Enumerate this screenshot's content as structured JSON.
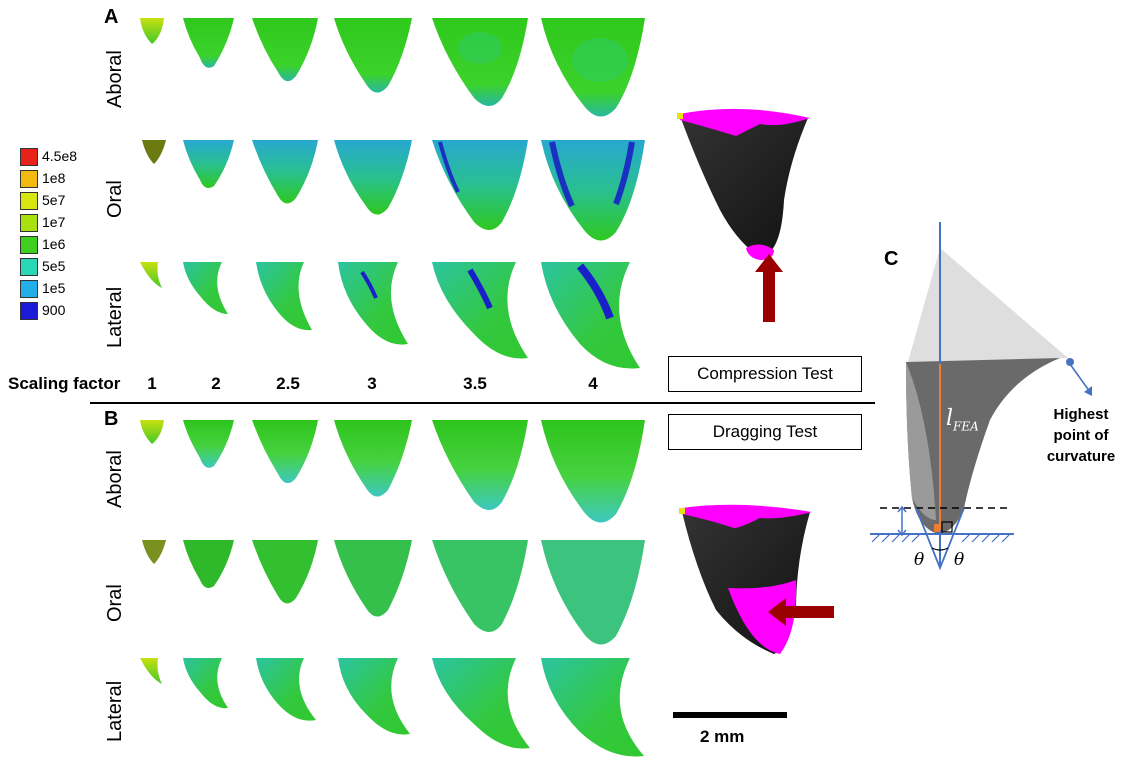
{
  "panels": {
    "a": "A",
    "b": "B",
    "c": "C"
  },
  "row_labels": {
    "aboral": "Aboral",
    "oral": "Oral",
    "lateral": "Lateral"
  },
  "scaling": {
    "label": "Scaling factor",
    "values": [
      "1",
      "2",
      "2.5",
      "3",
      "3.5",
      "4"
    ]
  },
  "legend": {
    "entries": [
      {
        "label": "4.5e8",
        "color": "#e8221a"
      },
      {
        "label": "1e8",
        "color": "#f2b90f"
      },
      {
        "label": "5e7",
        "color": "#d8e60f"
      },
      {
        "label": "1e7",
        "color": "#a9e10f"
      },
      {
        "label": "1e6",
        "color": "#3fcf1e"
      },
      {
        "label": "5e5",
        "color": "#28d7b3"
      },
      {
        "label": "1e5",
        "color": "#22aee6"
      },
      {
        "label": "900",
        "color": "#1a1ad8"
      }
    ]
  },
  "tests": {
    "compression": "Compression Test",
    "dragging": "Dragging Test"
  },
  "scale_bar": "2 mm",
  "panel_c": {
    "length_symbol": "l",
    "length_subscript": "FEA",
    "theta": "θ",
    "annotation": "Highest point of curvature"
  },
  "colors": {
    "magenta": "#ff00ff",
    "arrow_red": "#9b0000",
    "guide_blue": "#4472c4"
  }
}
